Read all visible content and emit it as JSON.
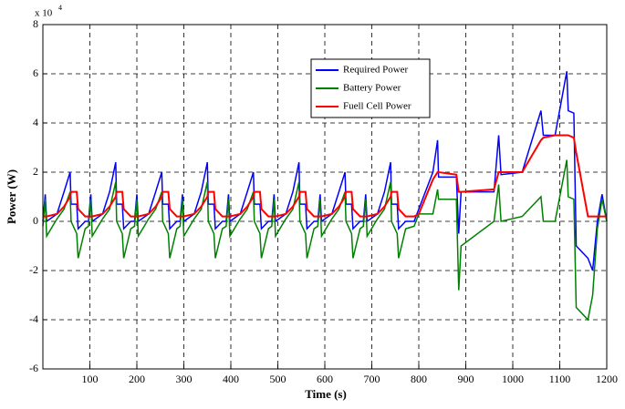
{
  "chart_data": {
    "type": "line",
    "xlabel": "Time (s)",
    "ylabel": "Power (W)",
    "y_scale_base": "x 10",
    "y_scale_exponent": "4",
    "x": [
      0,
      5,
      8,
      30,
      45,
      58,
      60,
      72,
      75,
      90,
      97,
      102,
      105,
      127,
      142,
      155,
      157,
      169,
      172,
      187,
      195,
      200,
      203,
      225,
      240,
      253,
      255,
      267,
      270,
      285,
      292,
      297,
      300,
      322,
      337,
      350,
      352,
      364,
      367,
      382,
      390,
      395,
      398,
      420,
      435,
      448,
      450,
      462,
      465,
      480,
      487,
      492,
      495,
      517,
      532,
      545,
      547,
      559,
      562,
      577,
      585,
      590,
      593,
      615,
      630,
      643,
      645,
      657,
      660,
      675,
      682,
      687,
      690,
      712,
      727,
      740,
      742,
      754,
      757,
      772,
      790,
      800,
      830,
      840,
      842,
      880,
      885,
      890,
      960,
      970,
      975,
      1020,
      1060,
      1065,
      1090,
      1115,
      1118,
      1130,
      1135,
      1160,
      1170,
      1180,
      1190,
      1200
    ],
    "series": [
      {
        "name": "Required Power",
        "color": "#0000ff",
        "values": [
          0,
          1.1,
          0,
          0.3,
          1.2,
          2.0,
          0.7,
          0.7,
          -0.3,
          0,
          0,
          1.1,
          0,
          0.3,
          1.2,
          2.4,
          0.7,
          0.7,
          -0.3,
          0,
          0,
          1.1,
          0,
          0.3,
          1.2,
          2.0,
          0.7,
          0.7,
          -0.3,
          0,
          0,
          1.1,
          0,
          0.3,
          1.2,
          2.4,
          0.7,
          0.7,
          -0.3,
          0,
          0,
          1.1,
          0,
          0.3,
          1.2,
          2.0,
          0.7,
          0.7,
          -0.3,
          0,
          0,
          1.1,
          0,
          0.3,
          1.2,
          2.4,
          0.7,
          0.7,
          -0.3,
          0,
          0,
          1.1,
          0,
          0.3,
          1.2,
          2.0,
          0.7,
          0.7,
          -0.3,
          0,
          0,
          1.1,
          0,
          0.3,
          1.2,
          2.4,
          0.7,
          0.7,
          -0.3,
          0,
          0,
          0.5,
          2.0,
          3.3,
          1.8,
          1.8,
          -0.5,
          1.2,
          1.2,
          3.5,
          1.9,
          2.0,
          4.5,
          3.5,
          3.5,
          6.1,
          4.5,
          4.4,
          -1.0,
          -1.5,
          -2.0,
          0,
          1.1,
          0
        ]
      },
      {
        "name": "Battery Power",
        "color": "#008000",
        "values": [
          -0.2,
          0.9,
          -0.6,
          0.1,
          0.5,
          1.2,
          0,
          -0.5,
          -1.5,
          -0.3,
          -0.2,
          0.9,
          -0.6,
          0.1,
          0.5,
          1.6,
          0,
          -0.5,
          -1.5,
          -0.3,
          -0.2,
          0.9,
          -0.6,
          0.1,
          0.5,
          1.2,
          0,
          -0.5,
          -1.5,
          -0.3,
          -0.2,
          0.9,
          -0.6,
          0.1,
          0.5,
          1.6,
          0,
          -0.5,
          -1.5,
          -0.3,
          -0.2,
          0.9,
          -0.6,
          0.1,
          0.5,
          1.2,
          0,
          -0.5,
          -1.5,
          -0.3,
          -0.2,
          0.9,
          -0.6,
          0.1,
          0.5,
          1.6,
          0,
          -0.5,
          -1.5,
          -0.3,
          -0.2,
          0.9,
          -0.6,
          0.1,
          0.5,
          1.2,
          0,
          -0.5,
          -1.5,
          -0.3,
          -0.2,
          0.9,
          -0.6,
          0.1,
          0.5,
          1.6,
          0,
          -0.5,
          -1.5,
          -0.3,
          -0.2,
          0.3,
          0.3,
          1.3,
          0.9,
          0.9,
          -2.8,
          -1.0,
          0,
          1.5,
          0,
          0.2,
          1.0,
          0,
          0,
          2.5,
          1.0,
          0.9,
          -3.5,
          -4.0,
          -3.0,
          -0.3,
          0.9,
          0
        ]
      },
      {
        "name": "Fuell Cell Power",
        "color": "#ff0000",
        "values": [
          0.2,
          0.2,
          0.2,
          0.3,
          0.6,
          1.0,
          1.2,
          1.2,
          0.5,
          0.2,
          0.2,
          0.2,
          0.2,
          0.3,
          0.6,
          1.0,
          1.2,
          1.2,
          0.5,
          0.2,
          0.2,
          0.2,
          0.2,
          0.3,
          0.6,
          1.0,
          1.2,
          1.2,
          0.5,
          0.2,
          0.2,
          0.2,
          0.2,
          0.3,
          0.6,
          1.0,
          1.2,
          1.2,
          0.5,
          0.2,
          0.2,
          0.2,
          0.2,
          0.3,
          0.6,
          1.0,
          1.2,
          1.2,
          0.5,
          0.2,
          0.2,
          0.2,
          0.2,
          0.3,
          0.6,
          1.0,
          1.2,
          1.2,
          0.5,
          0.2,
          0.2,
          0.2,
          0.2,
          0.3,
          0.6,
          1.0,
          1.2,
          1.2,
          0.5,
          0.2,
          0.2,
          0.2,
          0.2,
          0.3,
          0.6,
          1.0,
          1.2,
          1.2,
          0.5,
          0.2,
          0.2,
          0.3,
          1.7,
          2.0,
          2.0,
          1.9,
          1.2,
          1.2,
          1.3,
          2.0,
          2.0,
          2.0,
          3.3,
          3.4,
          3.5,
          3.5,
          3.5,
          3.4,
          2.8,
          0.2,
          0.2,
          0.2,
          0.2,
          0.2
        ]
      }
    ],
    "xlim": [
      0,
      1200
    ],
    "xticks": [
      100,
      200,
      300,
      400,
      500,
      600,
      700,
      800,
      900,
      1000,
      1100,
      1200
    ],
    "ylim": [
      -6,
      8
    ],
    "yticks": [
      -6,
      -4,
      -2,
      0,
      2,
      4,
      6,
      8
    ],
    "grid": true,
    "legend": "north"
  }
}
